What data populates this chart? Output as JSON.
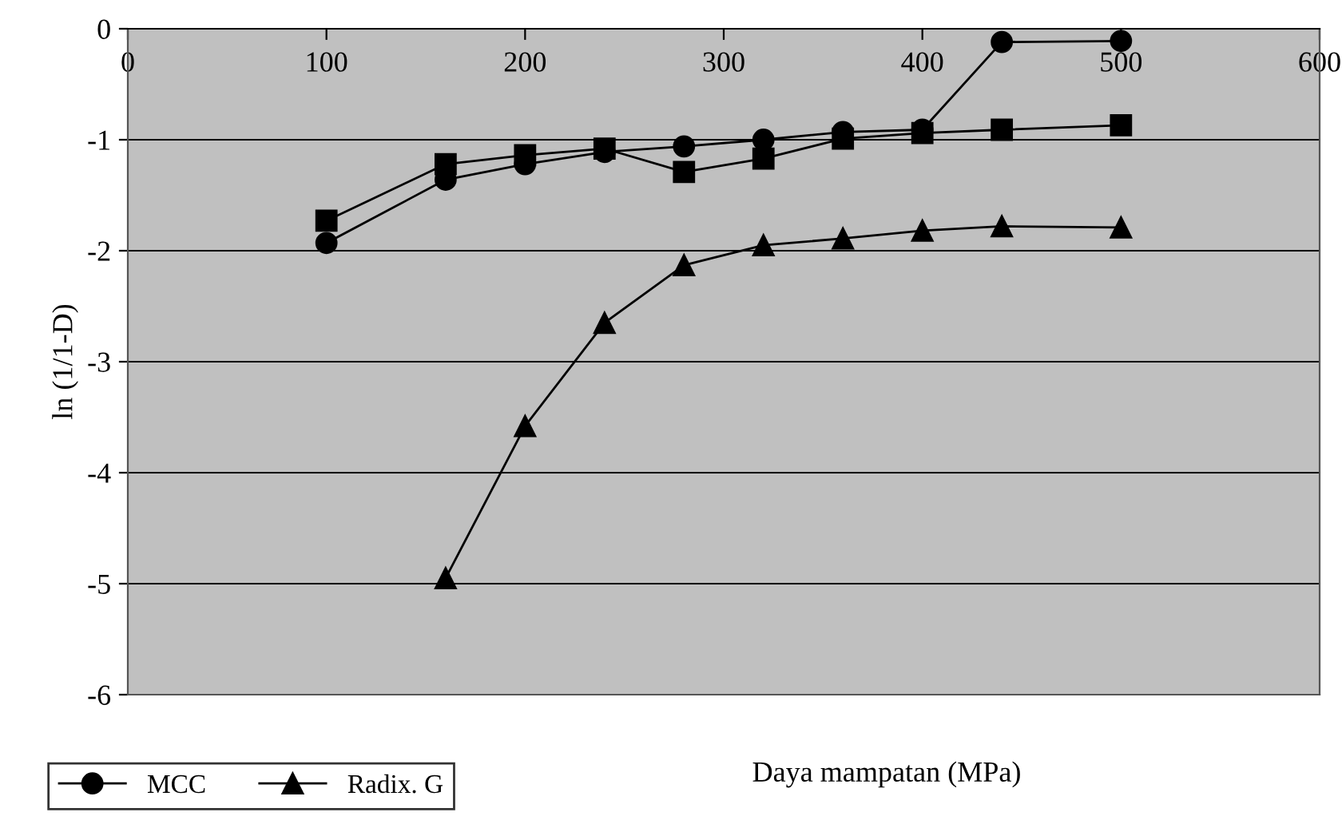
{
  "chart_data": {
    "type": "line",
    "xlabel": "Daya mampatan (MPa)",
    "ylabel": "ln (1/1-D)",
    "xlim": [
      0,
      600
    ],
    "xticks": [
      0,
      100,
      200,
      300,
      400,
      500,
      600
    ],
    "ylim": [
      -6,
      0
    ],
    "yticks": [
      {
        "value": 0,
        "label": "0"
      },
      {
        "value": -1,
        "label": "-1"
      },
      {
        "value": -2,
        "label": "-2"
      },
      {
        "value": -3,
        "label": "-3"
      },
      {
        "value": -4,
        "label": "-4"
      },
      {
        "value": -5,
        "label": "-5"
      },
      {
        "value": -6,
        "label": "-6"
      }
    ],
    "grid": "y",
    "legend": "bottom left",
    "line_style": "solid",
    "series": [
      {
        "name": "MCC",
        "color": "#000000",
        "marker": "circle",
        "x": [
          100,
          160,
          200,
          240,
          280,
          320,
          360,
          400,
          440,
          500
        ],
        "values": [
          -1.93,
          -1.36,
          -1.22,
          -1.11,
          -1.06,
          -1.0,
          -0.93,
          -0.91,
          -0.12,
          -0.11
        ]
      },
      {
        "color": "#000000",
        "marker": "square",
        "x": [
          100,
          160,
          200,
          240,
          280,
          320,
          360,
          400,
          440,
          500
        ],
        "values": [
          -1.73,
          -1.22,
          -1.14,
          -1.08,
          -1.29,
          -1.17,
          -0.99,
          -0.94,
          -0.91,
          -0.87
        ]
      },
      {
        "name": "Radix. G",
        "color": "#000000",
        "marker": "triangle",
        "x": [
          160,
          200,
          240,
          280,
          320,
          360,
          400,
          440,
          500
        ],
        "values": [
          -4.95,
          -3.58,
          -2.65,
          -2.13,
          -1.95,
          -1.89,
          -1.82,
          -1.78,
          -1.79
        ]
      }
    ]
  }
}
